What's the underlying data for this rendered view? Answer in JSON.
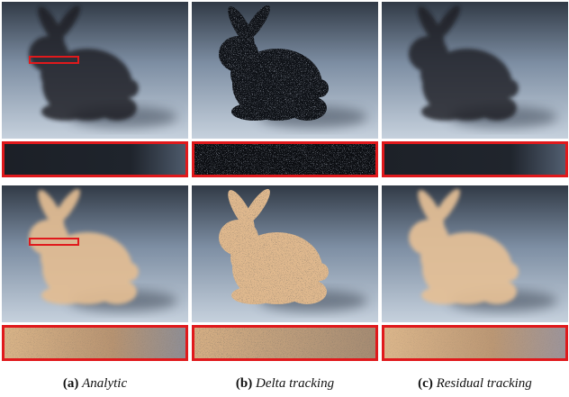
{
  "figure": {
    "columns": [
      {
        "tag": "(a)",
        "name": "Analytic"
      },
      {
        "tag": "(b)",
        "name": "Delta tracking"
      },
      {
        "tag": "(c)",
        "name": "Residual tracking"
      }
    ],
    "rows": [
      {
        "medium": "dark",
        "colors": {
          "bunny": "#1a1d24",
          "sky_top": "#2d3540",
          "sky_bottom": "#c2cedb"
        }
      },
      {
        "medium": "bright",
        "colors": {
          "bunny": "#e7c39a",
          "sky_top": "#3a4759",
          "sky_bottom": "#c5d0dd"
        }
      }
    ],
    "highlight_color": "#e0191c"
  }
}
